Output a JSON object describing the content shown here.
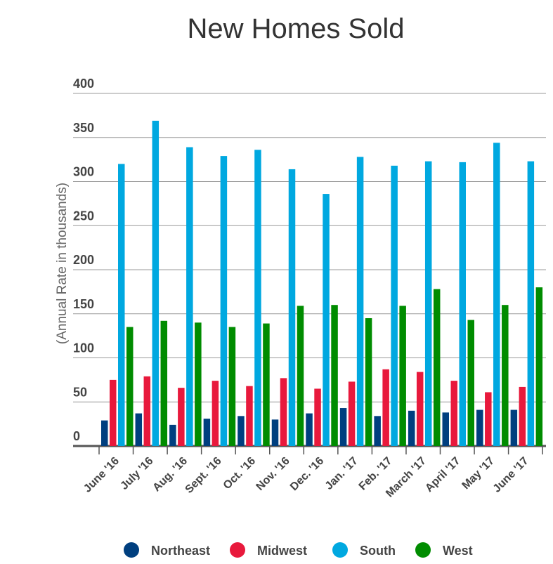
{
  "chart_data": {
    "type": "bar",
    "title": "New Homes Sold",
    "xlabel": "",
    "ylabel": "(Annual Rate in thousands)",
    "ylim": [
      0,
      400
    ],
    "yticks": [
      0,
      50,
      100,
      150,
      200,
      250,
      300,
      350,
      400
    ],
    "grid": true,
    "legend_position": "bottom",
    "categories": [
      "June '16",
      "July '16",
      "Aug. '16",
      "Sept. '16",
      "Oct. '16",
      "Nov. '16",
      "Dec. '16",
      "Jan. '17",
      "Feb. '17",
      "March '17",
      "April '17",
      "May '17",
      "June '17"
    ],
    "series": [
      {
        "name": "Northeast",
        "color": "#003f7f",
        "values": [
          29,
          37,
          24,
          31,
          34,
          30,
          37,
          43,
          34,
          40,
          38,
          41,
          41
        ]
      },
      {
        "name": "Midwest",
        "color": "#e8193c",
        "values": [
          75,
          79,
          66,
          74,
          68,
          77,
          65,
          73,
          87,
          84,
          74,
          61,
          67
        ]
      },
      {
        "name": "South",
        "color": "#00a8e0",
        "values": [
          320,
          369,
          339,
          329,
          336,
          314,
          286,
          328,
          318,
          323,
          322,
          344,
          323
        ]
      },
      {
        "name": "West",
        "color": "#008c00",
        "values": [
          135,
          142,
          140,
          135,
          139,
          159,
          160,
          145,
          159,
          178,
          143,
          160,
          180
        ]
      }
    ]
  }
}
